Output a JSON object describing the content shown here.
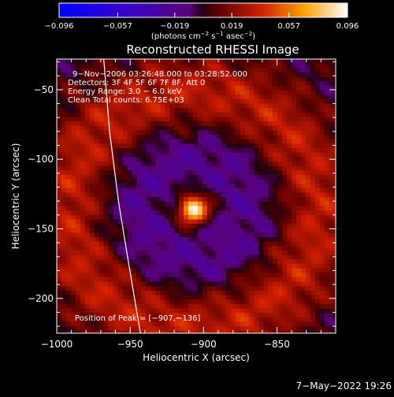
{
  "chart_data": {
    "type": "heatmap",
    "title": "Reconstructed RHESSI Image",
    "xlabel": "Heliocentric X (arcsec)",
    "ylabel": "Heliocentric Y (arcsec)",
    "xlim": [
      -1000,
      -810
    ],
    "ylim": [
      -225,
      -28
    ],
    "x_ticks": [
      -1000,
      -950,
      -900,
      -850
    ],
    "y_ticks": [
      -50,
      -100,
      -150,
      -200
    ],
    "x_tick_labels": [
      "−1000",
      "−950",
      "−900",
      "−850"
    ],
    "y_tick_labels": [
      "−50",
      "−100",
      "−150",
      "−200"
    ],
    "colorbar": {
      "ticks": [
        -0.096,
        -0.057,
        -0.019,
        0.019,
        0.057,
        0.096
      ],
      "tick_labels": [
        "−0.096",
        "−0.057",
        "−0.019",
        "0.019",
        "0.057",
        "0.096"
      ],
      "range": [
        -0.096,
        0.096
      ],
      "colormap": "blue-purple-red-yellow-white"
    },
    "colorbar_unit_html": "(photons cm<tspan dy=\"-4\" font-size=\"7\">−2</tspan><tspan dy=\"4\"> s</tspan><tspan dy=\"-4\" font-size=\"7\">−1</tspan><tspan dy=\"4\"> asec</tspan><tspan dy=\"-4\" font-size=\"7\">−2</tspan><tspan dy=\"4\">)</tspan>",
    "annotations": [
      "9−Nov−2006 03:26:48.000 to 03:28:52.000",
      "Detectors: 3F 4F 5F 6F 7F 8F, Att 0",
      "Energy Range: 3.0 − 6.0 keV",
      "Clean     Total counts: 6.75E+03"
    ],
    "peak_label": "Position of Peak = [−907,−136]",
    "peak": [
      -907,
      -136
    ],
    "peak_value": 0.096,
    "limb_arc": "solar limb (white line)"
  },
  "footer": {
    "timestamp": "7−May−2022 19:26"
  }
}
